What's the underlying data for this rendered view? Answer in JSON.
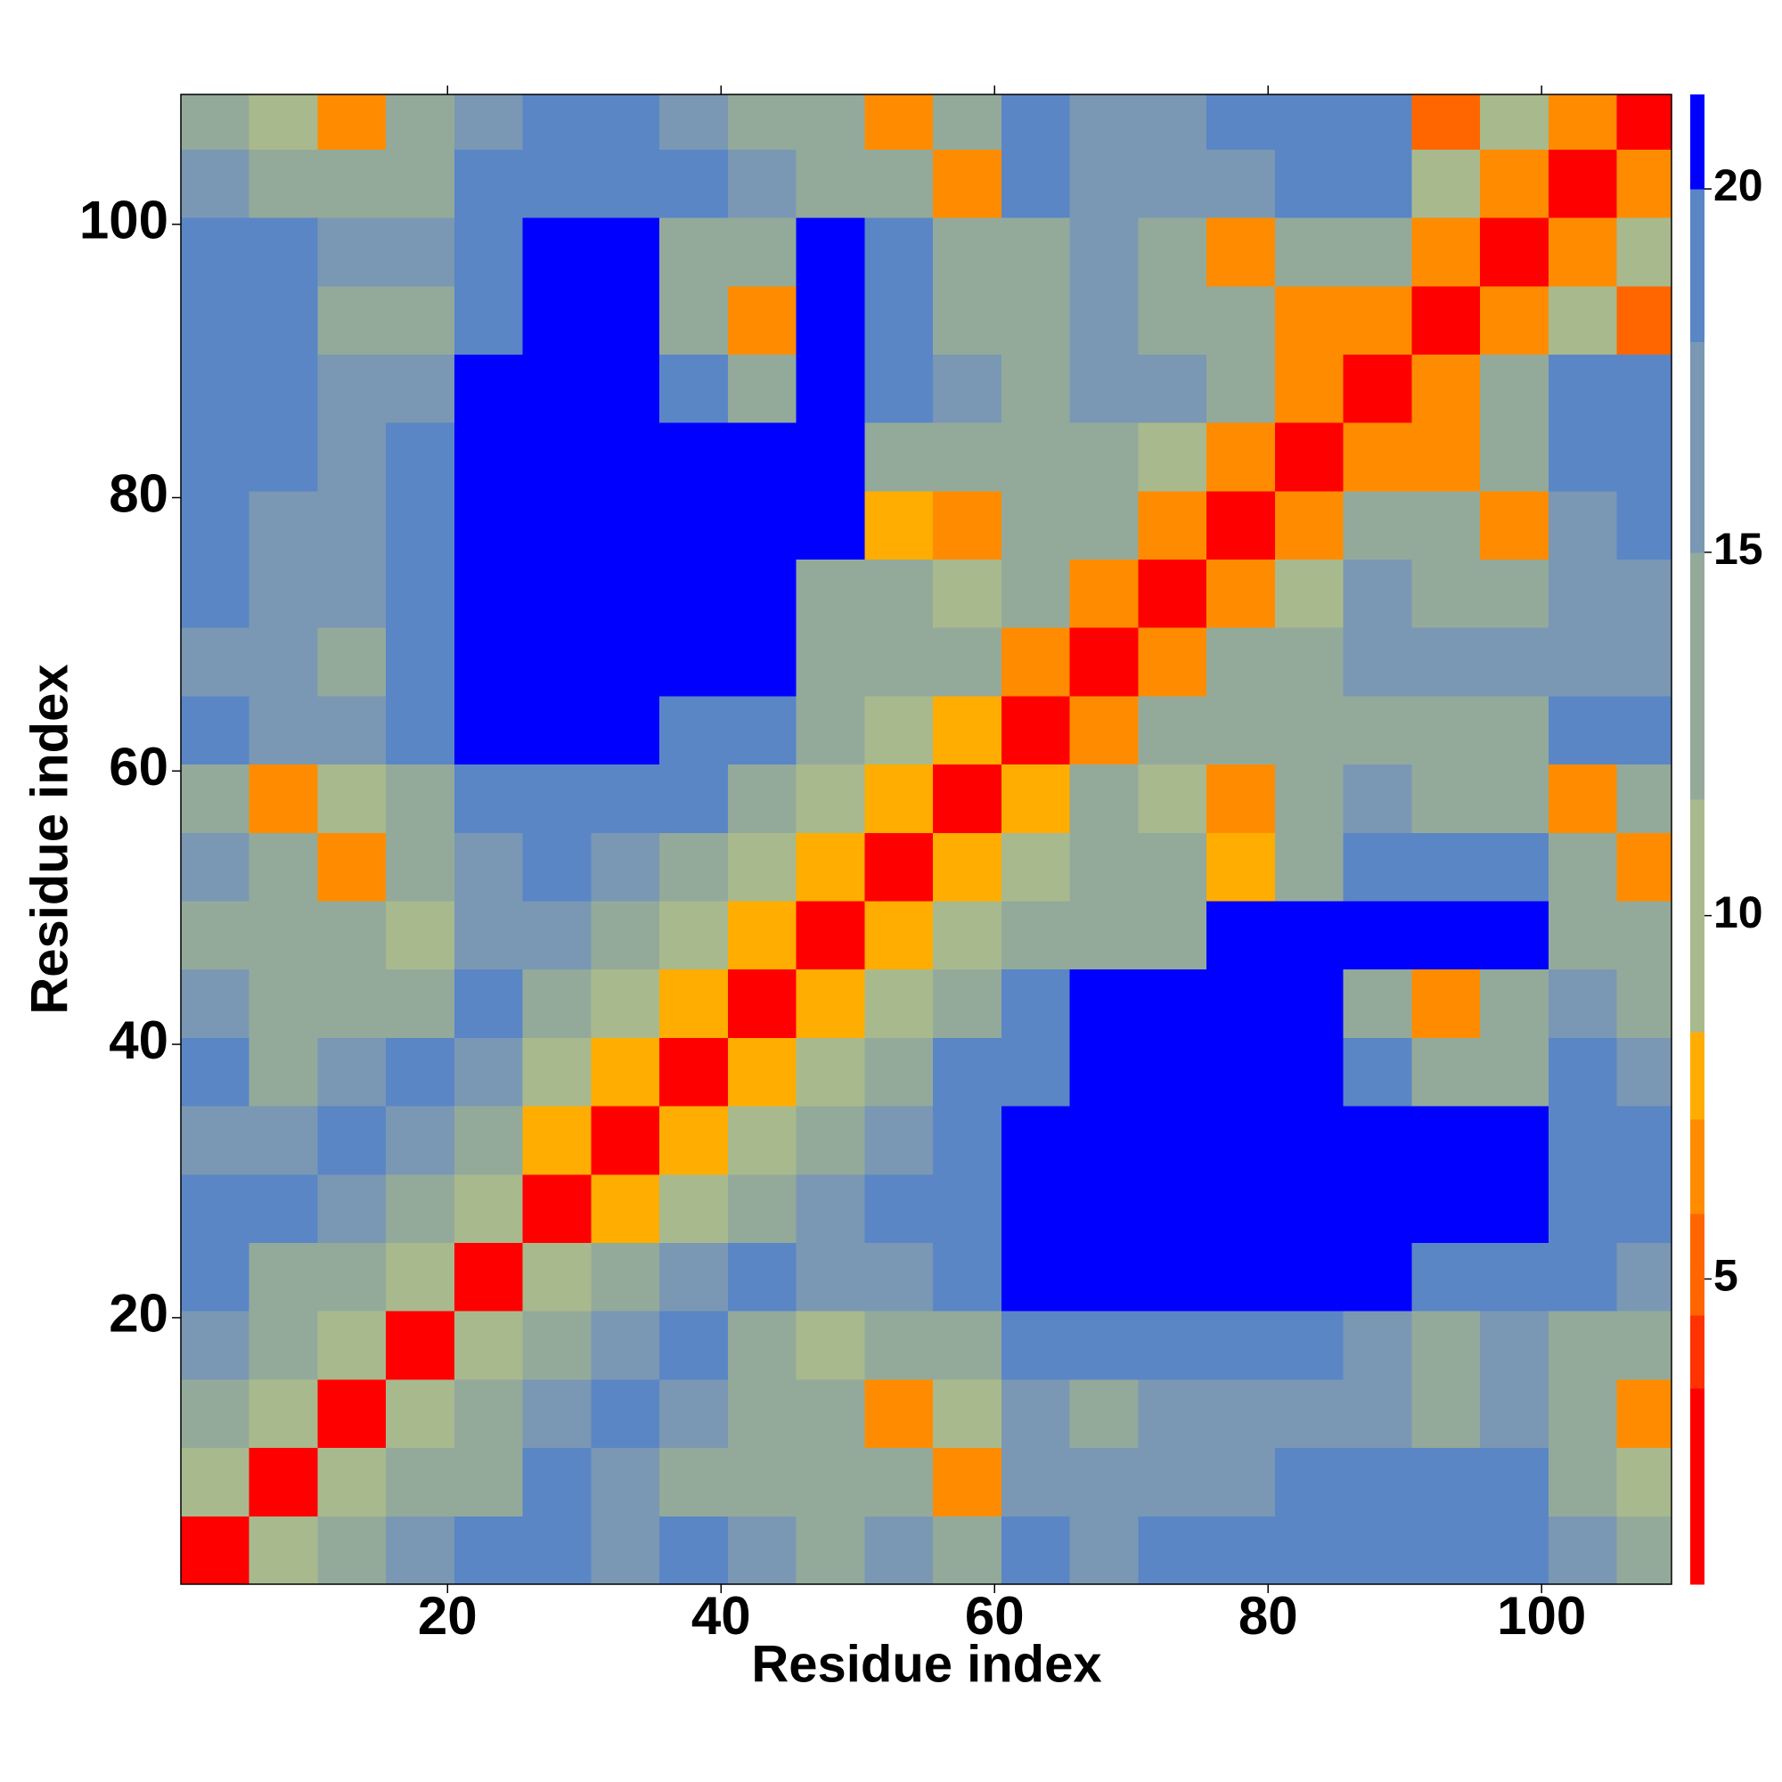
{
  "chart_data": {
    "type": "heatmap",
    "xlabel": "Residue index",
    "ylabel": "Residue index",
    "x": [
      3,
      8,
      13,
      18,
      23,
      28,
      33,
      38,
      43,
      48,
      53,
      58,
      63,
      68,
      73,
      78,
      83,
      88,
      93,
      98,
      103,
      108
    ],
    "y": [
      3,
      8,
      13,
      18,
      23,
      28,
      33,
      38,
      43,
      48,
      53,
      58,
      63,
      68,
      73,
      78,
      83,
      88,
      93,
      98,
      103,
      108
    ],
    "z": [
      [
        2,
        9,
        13,
        16,
        19,
        19,
        17,
        18,
        16,
        15,
        16,
        15,
        19,
        16,
        18,
        19,
        19,
        19,
        19,
        19,
        17,
        15
      ],
      [
        9,
        2,
        9,
        13,
        14,
        18,
        17,
        15,
        13,
        13,
        12,
        6,
        17,
        17,
        17,
        17,
        18,
        18,
        18,
        18,
        15,
        9
      ],
      [
        13,
        9,
        2,
        9,
        13,
        16,
        19,
        17,
        15,
        13,
        6,
        10,
        17,
        15,
        16,
        16,
        17,
        16,
        14,
        17,
        12,
        6
      ],
      [
        16,
        13,
        9,
        2,
        9,
        12,
        16,
        19,
        15,
        10,
        13,
        15,
        19,
        19,
        19,
        19,
        19,
        17,
        15,
        17,
        13,
        12
      ],
      [
        19,
        14,
        13,
        9,
        2,
        9,
        12,
        16,
        19,
        16,
        16,
        19,
        21,
        21,
        21,
        21,
        21,
        21,
        19,
        18,
        18,
        17
      ],
      [
        19,
        18,
        16,
        12,
        9,
        2,
        8,
        11,
        15,
        17,
        19,
        20,
        21,
        21,
        21,
        21,
        21,
        21,
        21,
        21,
        19,
        19
      ],
      [
        17,
        17,
        19,
        16,
        12,
        8,
        2,
        8,
        11,
        14,
        17,
        20,
        21,
        21,
        21,
        21,
        21,
        21,
        21,
        21,
        19,
        18
      ],
      [
        18,
        15,
        17,
        19,
        16,
        11,
        8,
        2,
        8,
        11,
        14,
        19,
        19,
        21,
        21,
        21,
        21,
        19,
        13,
        15,
        19,
        17
      ],
      [
        16,
        13,
        15,
        15,
        19,
        15,
        11,
        8,
        2,
        8,
        11,
        15,
        19,
        21,
        21,
        21,
        21,
        15,
        7,
        14,
        17,
        15
      ],
      [
        15,
        13,
        13,
        10,
        16,
        17,
        14,
        11,
        8,
        2,
        8,
        11,
        13,
        14,
        14,
        21,
        21,
        21,
        21,
        21,
        15,
        15
      ],
      [
        16,
        12,
        6,
        13,
        16,
        19,
        17,
        14,
        11,
        8,
        2,
        8,
        11,
        15,
        15,
        8,
        12,
        20,
        19,
        18,
        12,
        6
      ],
      [
        15,
        6,
        10,
        15,
        19,
        20,
        20,
        19,
        15,
        11,
        8,
        2,
        8,
        12,
        10,
        7,
        14,
        16,
        15,
        14,
        6,
        12
      ],
      [
        19,
        17,
        17,
        19,
        21,
        21,
        21,
        19,
        19,
        13,
        11,
        8,
        2,
        6,
        14,
        13,
        15,
        15,
        15,
        13,
        18,
        18
      ],
      [
        16,
        17,
        15,
        19,
        21,
        21,
        21,
        21,
        21,
        14,
        15,
        12,
        6,
        2,
        7,
        14,
        13,
        16,
        16,
        16,
        17,
        17
      ],
      [
        18,
        17,
        16,
        19,
        21,
        21,
        21,
        21,
        21,
        14,
        15,
        10,
        14,
        7,
        2,
        7,
        11,
        16,
        15,
        14,
        17,
        16
      ],
      [
        19,
        17,
        16,
        19,
        21,
        21,
        21,
        21,
        21,
        21,
        8,
        7,
        13,
        14,
        7,
        2,
        7,
        12,
        12,
        7,
        17,
        19
      ],
      [
        19,
        18,
        17,
        19,
        21,
        21,
        21,
        21,
        21,
        21,
        12,
        14,
        15,
        13,
        11,
        7,
        2,
        7,
        7,
        13,
        20,
        20
      ],
      [
        19,
        18,
        16,
        17,
        21,
        21,
        21,
        19,
        15,
        21,
        20,
        16,
        15,
        16,
        16,
        12,
        7,
        2,
        7,
        14,
        20,
        19
      ],
      [
        19,
        18,
        14,
        15,
        19,
        21,
        21,
        13,
        7,
        21,
        19,
        15,
        15,
        16,
        15,
        12,
        7,
        7,
        2,
        7,
        9,
        5
      ],
      [
        19,
        18,
        17,
        17,
        18,
        21,
        21,
        15,
        14,
        21,
        18,
        14,
        13,
        16,
        14,
        7,
        13,
        14,
        7,
        2,
        6,
        9
      ],
      [
        17,
        15,
        12,
        13,
        18,
        19,
        19,
        19,
        17,
        15,
        12,
        6,
        18,
        17,
        17,
        17,
        20,
        20,
        9,
        6,
        2,
        7
      ],
      [
        15,
        9,
        6,
        12,
        17,
        19,
        18,
        17,
        15,
        15,
        6,
        12,
        18,
        17,
        16,
        19,
        20,
        19,
        5,
        9,
        7,
        2
      ]
    ],
    "cell_size": 5,
    "xlim": [
      0.5,
      109.5
    ],
    "ylim": [
      0.5,
      109.5
    ],
    "xticks": [
      20,
      40,
      60,
      80,
      100
    ],
    "yticks": [
      20,
      40,
      60,
      80,
      100
    ],
    "zlim": [
      0.8,
      21.3
    ],
    "zticks": [
      5,
      10,
      15,
      20
    ],
    "color_bounds": [
      0.8,
      3.5,
      4.5,
      5.9,
      7.2,
      8.4,
      11.6,
      15,
      17.9,
      20,
      21.3
    ],
    "colors": [
      "#ff0000",
      "#ff3300",
      "#ff6600",
      "#ff8c00",
      "#ffad00",
      "#a9b98e",
      "#93aa9a",
      "#7a98b3",
      "#5a86c6",
      "#0000ff"
    ]
  }
}
